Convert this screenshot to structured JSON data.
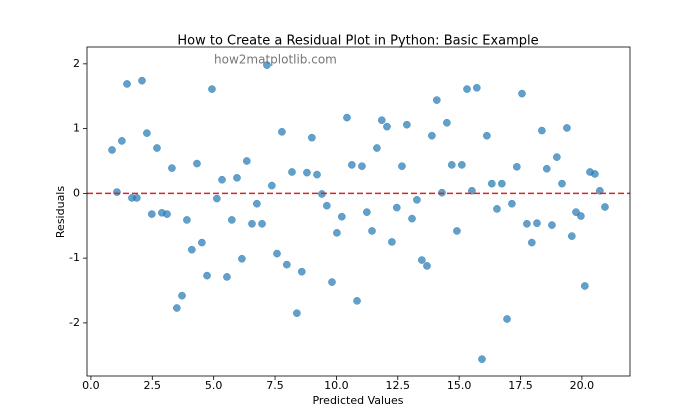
{
  "chart_data": {
    "type": "scatter",
    "title": "How to Create a Residual Plot in Python: Basic Example",
    "xlabel": "Predicted Values",
    "ylabel": "Residuals",
    "watermark": "how2matplotlib.com",
    "color": "#1f77b4",
    "alpha": 0.7,
    "grid": false,
    "reference_line": {
      "value": 0,
      "color": "#d62728",
      "style": "dashed"
    },
    "xlim": [
      -0.16,
      21.96
    ],
    "ylim": [
      -2.82,
      2.26
    ],
    "xticks": [
      {
        "value": 0,
        "label": "0.0"
      },
      2.5,
      {
        "value": 5,
        "label": "5.0"
      },
      7.5,
      {
        "value": 10,
        "label": "10.0"
      },
      12.5,
      {
        "value": 15,
        "label": "15.0"
      },
      17.5,
      {
        "value": 20,
        "label": "20.0"
      }
    ],
    "yticks": [
      -2,
      -1,
      0,
      1,
      2
    ],
    "x": [
      0.86,
      1.06,
      1.26,
      1.47,
      1.67,
      1.87,
      2.08,
      2.28,
      2.48,
      2.69,
      2.89,
      3.1,
      3.3,
      3.5,
      3.71,
      3.91,
      4.11,
      4.32,
      4.52,
      4.73,
      4.93,
      5.13,
      5.34,
      5.54,
      5.74,
      5.95,
      6.15,
      6.35,
      6.56,
      6.76,
      6.97,
      7.17,
      7.37,
      7.58,
      7.78,
      7.98,
      8.19,
      8.39,
      8.59,
      8.8,
      9.0,
      9.21,
      9.41,
      9.61,
      9.82,
      10.02,
      10.22,
      10.43,
      10.63,
      10.84,
      11.04,
      11.24,
      11.45,
      11.65,
      11.85,
      12.06,
      12.26,
      12.46,
      12.67,
      12.87,
      13.08,
      13.28,
      13.48,
      13.69,
      13.89,
      14.09,
      14.3,
      14.5,
      14.7,
      14.91,
      15.11,
      15.32,
      15.52,
      15.72,
      15.93,
      16.13,
      16.33,
      16.54,
      16.74,
      16.95,
      17.15,
      17.35,
      17.56,
      17.76,
      17.96,
      18.17,
      18.37,
      18.57,
      18.78,
      18.98,
      19.19,
      19.39,
      19.59,
      19.76,
      19.96,
      20.12,
      20.33,
      20.53,
      20.73,
      20.94
    ],
    "values": [
      0.67,
      0.02,
      0.81,
      1.69,
      -0.07,
      -0.07,
      1.74,
      0.93,
      -0.32,
      0.7,
      -0.3,
      -0.32,
      0.39,
      -1.77,
      -1.58,
      -0.41,
      -0.87,
      0.46,
      -0.76,
      -1.27,
      1.61,
      -0.08,
      0.21,
      -1.29,
      -0.41,
      0.24,
      -1.01,
      0.5,
      -0.47,
      -0.16,
      -0.47,
      1.98,
      0.12,
      -0.93,
      0.95,
      -1.1,
      0.33,
      -1.85,
      -1.21,
      0.32,
      0.86,
      0.29,
      -0.01,
      -0.19,
      -1.37,
      -0.61,
      -0.36,
      1.17,
      0.44,
      -1.66,
      0.42,
      -0.29,
      -0.58,
      0.7,
      1.13,
      1.03,
      -0.75,
      -0.22,
      0.42,
      1.06,
      -0.39,
      -0.1,
      -1.03,
      -1.12,
      0.89,
      1.44,
      0.01,
      1.09,
      0.44,
      -0.58,
      0.44,
      1.61,
      0.04,
      1.63,
      -2.56,
      0.89,
      0.15,
      -0.24,
      0.15,
      -1.94,
      -0.16,
      0.41,
      1.54,
      -0.47,
      -0.76,
      -0.46,
      0.97,
      0.38,
      -0.49,
      0.56,
      0.15,
      1.01,
      -0.66,
      -0.29,
      -0.35,
      -1.43,
      0.33,
      0.3,
      0.04,
      -0.21
    ]
  }
}
